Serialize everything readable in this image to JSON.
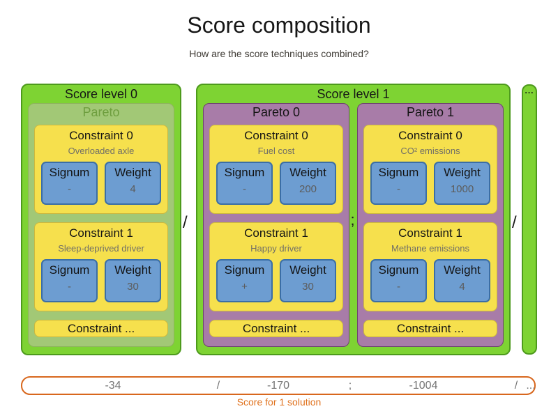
{
  "page": {
    "title": "Score composition",
    "subtitle": "How are the score techniques combined?"
  },
  "shared": {
    "signum_header": "Signum",
    "weight_header": "Weight"
  },
  "levels": [
    {
      "label": "Score level 0",
      "groups": [
        {
          "label": "Pareto",
          "constraints": [
            {
              "title": "Constraint 0",
              "description": "Overloaded axle",
              "signum": "-",
              "weight": "4"
            },
            {
              "title": "Constraint 1",
              "description": "Sleep-deprived driver",
              "signum": "-",
              "weight": "30"
            }
          ],
          "more_label": "Constraint ..."
        }
      ]
    },
    {
      "label": "Score level 1",
      "groups": [
        {
          "label": "Pareto 0",
          "constraints": [
            {
              "title": "Constraint 0",
              "description": "Fuel cost",
              "signum": "-",
              "weight": "200"
            },
            {
              "title": "Constraint 1",
              "description": "Happy driver",
              "signum": "+",
              "weight": "30"
            }
          ],
          "more_label": "Constraint ..."
        },
        {
          "label": "Pareto 1",
          "constraints": [
            {
              "title": "Constraint 0",
              "description": "CO² emissions",
              "signum": "-",
              "weight": "1000"
            },
            {
              "title": "Constraint 1",
              "description": "Methane emissions",
              "signum": "-",
              "weight": "4"
            }
          ],
          "more_label": "Constraint ..."
        }
      ]
    }
  ],
  "separators": {
    "slash": "/",
    "semicolon": ";",
    "ellipsis": "..."
  },
  "score_row": {
    "values": [
      "-34",
      "/",
      "-170",
      ";",
      "-1004",
      "/",
      "..."
    ],
    "caption": "Score for 1 solution"
  },
  "colors": {
    "level_green": "#7ed333",
    "level_green_border": "#4d9a1c",
    "pareto_green": "#a2c876",
    "pareto_green_text": "#6e9e3e",
    "pareto_purple": "#a87ca8",
    "pareto_purple_border": "#6e426e",
    "constraint_yellow": "#f6e04d",
    "signum_weight_blue": "#6d9dd1",
    "score_orange": "#d8671d"
  }
}
